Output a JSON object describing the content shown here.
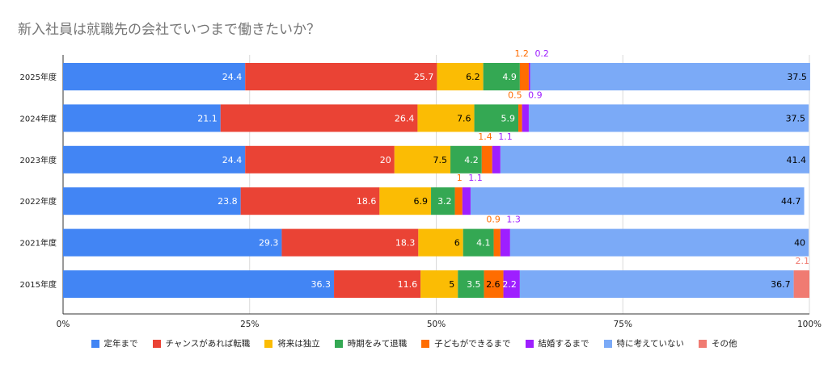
{
  "chart_data": {
    "type": "bar",
    "orientation": "horizontal",
    "stacked": "percent",
    "title": "新入社員は就職先の会社でいつまで働きたいか？",
    "categories": [
      "2025年度",
      "2024年度",
      "2023年度",
      "2022年度",
      "2021年度",
      "2015年度"
    ],
    "x_ticks": [
      "0%",
      "25%",
      "50%",
      "75%",
      "100%"
    ],
    "xlim": [
      0,
      100
    ],
    "grid": true,
    "legend_position": "bottom",
    "series": [
      {
        "name": "定年まで",
        "color": "#4285F4",
        "label_color": "#ffffff",
        "values": [
          24.4,
          21.1,
          24.4,
          23.8,
          29.3,
          36.3
        ]
      },
      {
        "name": "チャンスがあれば転職",
        "color": "#EA4335",
        "label_color": "#ffffff",
        "values": [
          25.7,
          26.4,
          20,
          18.6,
          18.3,
          11.6
        ]
      },
      {
        "name": "将来は独立",
        "color": "#FBBC04",
        "label_color": "#000000",
        "values": [
          6.2,
          7.6,
          7.5,
          6.9,
          6,
          5
        ]
      },
      {
        "name": "時期をみて退職",
        "color": "#34A853",
        "label_color": "#ffffff",
        "values": [
          4.9,
          5.9,
          4.2,
          3.2,
          4.1,
          3.5
        ]
      },
      {
        "name": "子どもができるまで",
        "color": "#FF6D01",
        "label_color": "#000000",
        "values": [
          1.2,
          0.5,
          1.4,
          1,
          0.9,
          2.6
        ]
      },
      {
        "name": "結婚するまで",
        "color": "#9E1FFF",
        "label_color": "#ffffff",
        "values": [
          0.2,
          0.9,
          1.1,
          1.1,
          1.3,
          2.2
        ]
      },
      {
        "name": "特に考えていない",
        "color": "#7BAAF7",
        "label_color": "#000000",
        "values": [
          37.5,
          37.5,
          41.4,
          44.7,
          40,
          36.7
        ]
      },
      {
        "name": "その他",
        "color": "#F07B72",
        "label_color": "#000000",
        "values": [
          null,
          null,
          null,
          null,
          null,
          2.1
        ]
      }
    ]
  }
}
